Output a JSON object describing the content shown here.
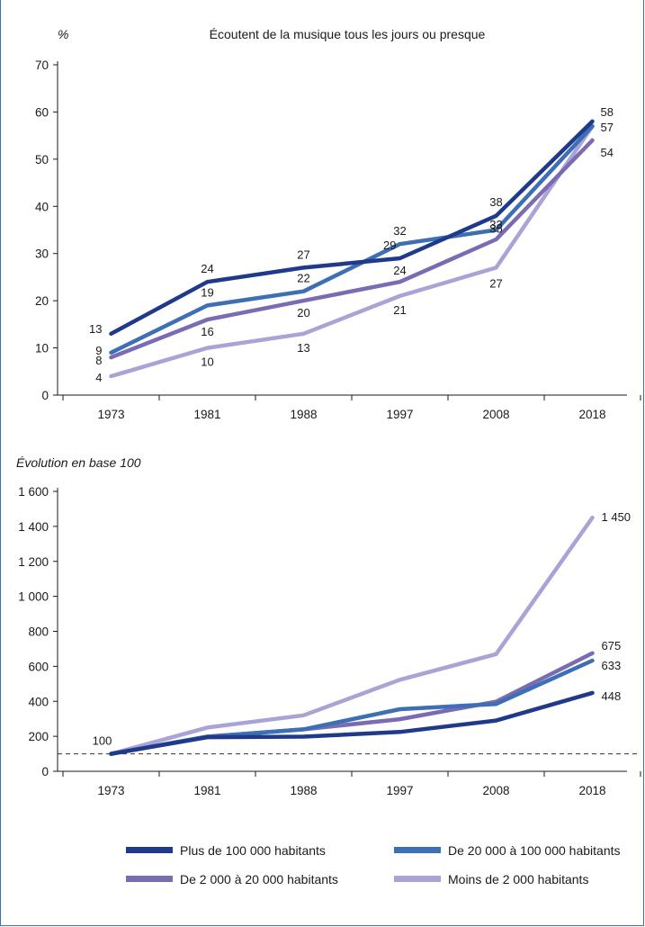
{
  "colors": {
    "series1": "#1f3a8a",
    "series2": "#3d6fb5",
    "series3": "#7b6bb3",
    "series4": "#a9a3d6",
    "axis": "#1a1a1a",
    "frame": "#3d6fb5"
  },
  "chart_data": [
    {
      "type": "line",
      "title": "Écoutent de la musique tous les jours ou presque",
      "ylabel": "%",
      "xlabel": "",
      "categories": [
        "1973",
        "1981",
        "1988",
        "1997",
        "2008",
        "2018"
      ],
      "ylim": [
        0,
        70
      ],
      "yticks": [
        "0",
        "10",
        "20",
        "30",
        "40",
        "50",
        "60",
        "70"
      ],
      "grid": false,
      "series": [
        {
          "name": "Plus de 100 000 habitants",
          "values": [
            13,
            24,
            27,
            29,
            38,
            58
          ],
          "labels": [
            "13",
            "24",
            "27",
            "29",
            "38",
            "58"
          ]
        },
        {
          "name": "De 20 000 à 100 000 habitants",
          "values": [
            9,
            19,
            22,
            32,
            35,
            57
          ],
          "labels": [
            "9",
            "19",
            "22",
            "32",
            "35",
            "57"
          ]
        },
        {
          "name": "De 2 000 à 20 000 habitants",
          "values": [
            8,
            16,
            20,
            24,
            33,
            54
          ],
          "labels": [
            "8",
            "16",
            "20",
            "24",
            "33",
            "54"
          ]
        },
        {
          "name": "Moins de 2 000 habitants",
          "values": [
            4,
            10,
            13,
            21,
            27,
            57
          ],
          "labels": [
            "4",
            "10",
            "13",
            "21",
            "27",
            ""
          ]
        }
      ]
    },
    {
      "type": "line",
      "title": "",
      "ylabel": "Évolution en base 100",
      "xlabel": "",
      "categories": [
        "1973",
        "1981",
        "1988",
        "1997",
        "2008",
        "2018"
      ],
      "ylim": [
        0,
        1600
      ],
      "yticks": [
        "0",
        "200",
        "400",
        "600",
        "800",
        "1 000",
        "1 200",
        "1 400",
        "1 600"
      ],
      "reference_line": {
        "value": 100,
        "style": "dashed",
        "label": "100"
      },
      "grid": false,
      "series": [
        {
          "name": "Plus de 100 000 habitants",
          "values": [
            100,
            195,
            198,
            225,
            290,
            448
          ],
          "end_label": "448"
        },
        {
          "name": "De 20 000 à 100 000 habitants",
          "values": [
            100,
            198,
            240,
            355,
            385,
            633
          ],
          "end_label": "633"
        },
        {
          "name": "De 2 000 à 20 000 habitants",
          "values": [
            100,
            198,
            240,
            298,
            398,
            675
          ],
          "end_label": "675"
        },
        {
          "name": "Moins de 2 000 habitants",
          "values": [
            100,
            250,
            320,
            523,
            670,
            1450
          ],
          "end_label": "1 450"
        }
      ]
    }
  ],
  "legend": {
    "placement": "bottom",
    "items": [
      "Plus de 100 000 habitants",
      "De 20 000 à 100 000 habitants",
      "De 2 000 à 20 000 habitants",
      "Moins de 2 000 habitants"
    ]
  }
}
